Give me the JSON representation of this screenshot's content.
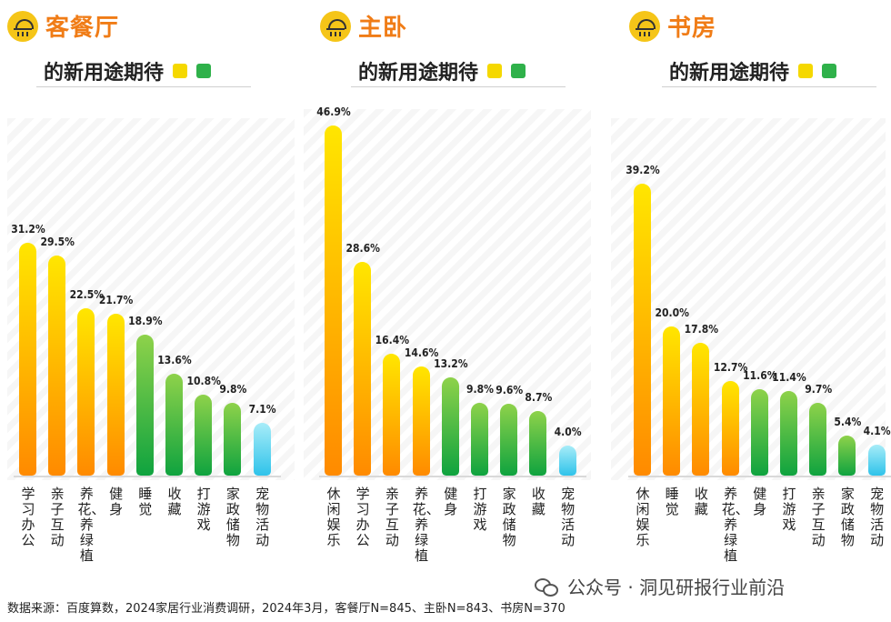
{
  "panels": [
    {
      "title": "客餐厅",
      "subtitle": "的新用途期待",
      "chart_data": {
        "type": "bar",
        "title": "客餐厅 的新用途期待",
        "categories": [
          "学习办公",
          "亲子互动",
          "养花、养绿植",
          "健身",
          "睡觉",
          "收藏",
          "打游戏",
          "家政储物",
          "宠物活动"
        ],
        "values": [
          31.2,
          29.5,
          22.5,
          21.7,
          18.9,
          13.6,
          10.8,
          9.8,
          7.1
        ],
        "value_labels": [
          "31.2%",
          "29.5%",
          "22.5%",
          "21.7%",
          "18.9%",
          "13.6%",
          "10.8%",
          "9.8%",
          "7.1%"
        ],
        "colors": [
          "yellow",
          "yellow",
          "yellow",
          "yellow",
          "green",
          "green",
          "green",
          "green",
          "cyan"
        ],
        "ylim": [
          0,
          50
        ],
        "xlabel": "",
        "ylabel": ""
      }
    },
    {
      "title": "主卧",
      "subtitle": "的新用途期待",
      "chart_data": {
        "type": "bar",
        "title": "主卧 的新用途期待",
        "categories": [
          "休闲娱乐",
          "学习办公",
          "亲子互动",
          "养花、养绿植",
          "健身",
          "打游戏",
          "家政储物",
          "收藏",
          "宠物活动"
        ],
        "values": [
          46.9,
          28.6,
          16.4,
          14.6,
          13.2,
          9.8,
          9.6,
          8.7,
          4.0
        ],
        "value_labels": [
          "46.9%",
          "28.6%",
          "16.4%",
          "14.6%",
          "13.2%",
          "9.8%",
          "9.6%",
          "8.7%",
          "4.0%"
        ],
        "colors": [
          "yellow",
          "yellow",
          "yellow",
          "yellow",
          "green",
          "green",
          "green",
          "green",
          "cyan"
        ],
        "ylim": [
          0,
          50
        ],
        "xlabel": "",
        "ylabel": ""
      }
    },
    {
      "title": "书房",
      "subtitle": "的新用途期待",
      "chart_data": {
        "type": "bar",
        "title": "书房 的新用途期待",
        "categories": [
          "休闲娱乐",
          "睡觉",
          "收藏",
          "养花、养绿植",
          "健身",
          "打游戏",
          "亲子互动",
          "家政储物",
          "宠物活动"
        ],
        "values": [
          39.2,
          20.0,
          17.8,
          12.7,
          11.6,
          11.4,
          9.7,
          5.4,
          4.1
        ],
        "value_labels": [
          "39.2%",
          "20.0%",
          "17.8%",
          "12.7%",
          "11.6%",
          "11.4%",
          "9.7%",
          "5.4%",
          "4.1%"
        ],
        "colors": [
          "yellow",
          "yellow",
          "yellow",
          "yellow",
          "green",
          "green",
          "green",
          "green",
          "cyan"
        ],
        "ylim": [
          0,
          50
        ],
        "xlabel": "",
        "ylabel": ""
      }
    }
  ],
  "footer": {
    "source": "数据来源：百度算数，2024家居行业消费调研，2024年3月，客餐厅N=845、主卧N=843、书房N=370"
  },
  "watermark": {
    "label": "公众号 · 洞见研报行业前沿"
  },
  "colors": {
    "title": "#f07c16",
    "yellow_top": "#ffe600",
    "yellow_bottom": "#ff8a00",
    "green_top": "#8ed24a",
    "green_bottom": "#0fa33f",
    "cyan_top": "#a7ecf8",
    "cyan_bottom": "#2fc3ea"
  }
}
